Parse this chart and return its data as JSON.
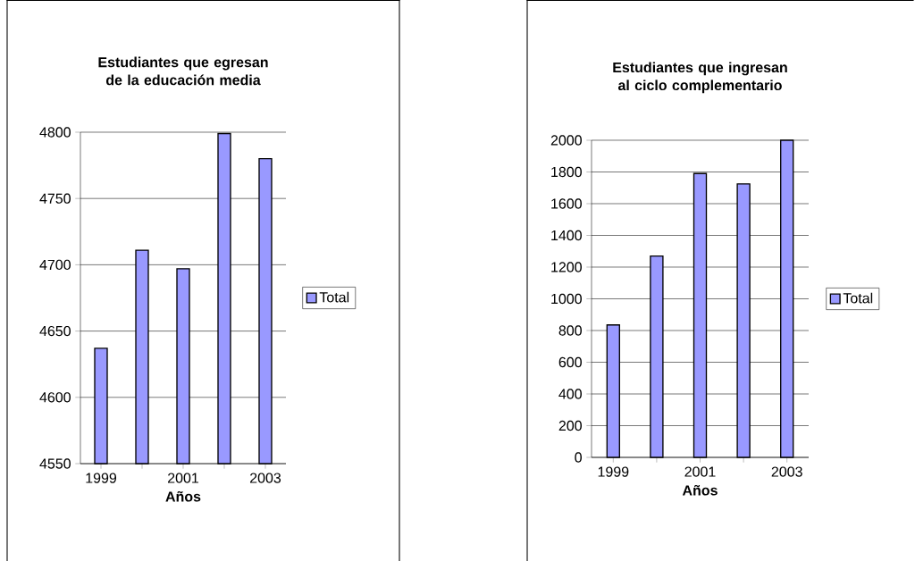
{
  "chart_data": [
    {
      "type": "bar",
      "title": "Estudiantes que egresan de la educación media",
      "xlabel": "Años",
      "categories": [
        "1999",
        null,
        "2001",
        null,
        "2003"
      ],
      "series": [
        {
          "name": "Total",
          "color": "#9999ff",
          "values": [
            4637,
            4711,
            4697,
            4799,
            4780
          ]
        }
      ],
      "ylim": [
        4550,
        4800
      ],
      "yticks": [
        4550,
        4600,
        4650,
        4700,
        4750,
        4800
      ],
      "grid": "y",
      "legend": "right"
    },
    {
      "type": "bar",
      "title": "Estudiantes que ingresan al ciclo complementario",
      "xlabel": "Años",
      "categories": [
        "1999",
        null,
        "2001",
        null,
        "2003"
      ],
      "series": [
        {
          "name": "Total",
          "color": "#9999ff",
          "values": [
            835,
            1270,
            1790,
            1725,
            2000
          ]
        }
      ],
      "ylim": [
        0,
        2000
      ],
      "yticks": [
        0,
        200,
        400,
        600,
        800,
        1000,
        1200,
        1400,
        1600,
        1800,
        2000
      ],
      "grid": "y",
      "legend": "right"
    }
  ]
}
